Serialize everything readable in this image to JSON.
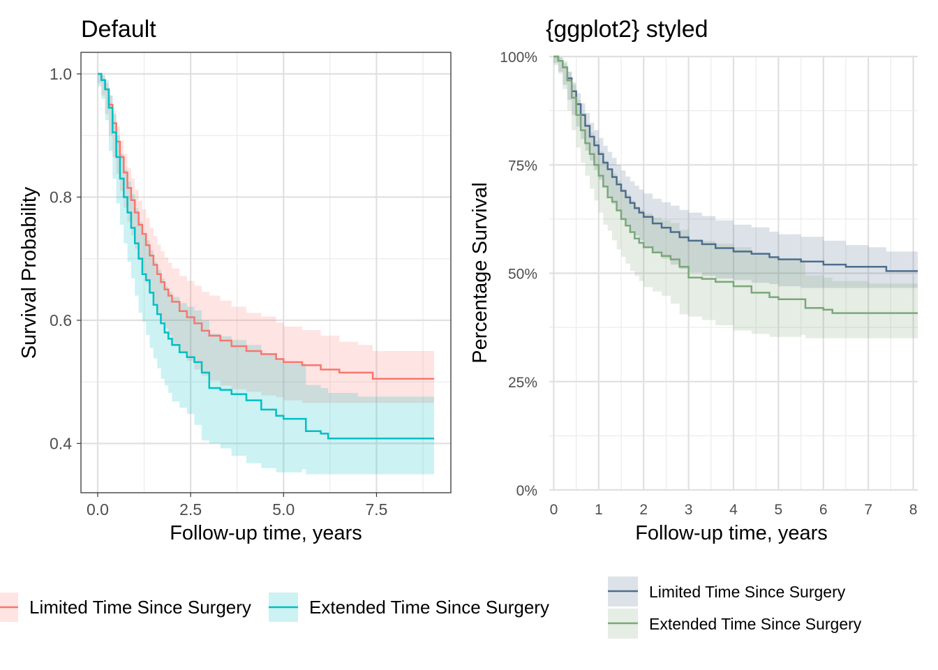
{
  "chart_data": [
    {
      "type": "line",
      "title": "Default",
      "xlabel": "Follow-up time, years",
      "ylabel": "Survival Probability",
      "xlim": [
        -0.45,
        9.5
      ],
      "ylim": [
        0.32,
        1.035
      ],
      "xticks": [
        0,
        2.5,
        5,
        7.5
      ],
      "xtick_labels": [
        "0.0",
        "2.5",
        "5.0",
        "7.5"
      ],
      "yticks": [
        0.4,
        0.6,
        0.8,
        1.0
      ],
      "ytick_labels": [
        "0.4",
        "0.6",
        "0.8",
        "1.0"
      ],
      "grid": true,
      "legend_position": "bottom",
      "series": [
        {
          "name": "Limited Time Since Surgery",
          "color": "#F8766D",
          "x": [
            0,
            0.1,
            0.2,
            0.3,
            0.4,
            0.5,
            0.6,
            0.7,
            0.8,
            0.9,
            1.0,
            1.1,
            1.2,
            1.3,
            1.4,
            1.5,
            1.6,
            1.7,
            1.8,
            1.9,
            2.0,
            2.2,
            2.4,
            2.6,
            2.8,
            3.0,
            3.3,
            3.6,
            4.0,
            4.4,
            4.8,
            5.0,
            5.5,
            6.0,
            6.5,
            7.0,
            7.4,
            9.05
          ],
          "y": [
            1.0,
            0.99,
            0.975,
            0.95,
            0.92,
            0.89,
            0.865,
            0.84,
            0.815,
            0.795,
            0.775,
            0.755,
            0.74,
            0.722,
            0.705,
            0.69,
            0.675,
            0.662,
            0.65,
            0.64,
            0.63,
            0.615,
            0.605,
            0.595,
            0.583,
            0.575,
            0.567,
            0.558,
            0.55,
            0.545,
            0.537,
            0.532,
            0.527,
            0.52,
            0.515,
            0.515,
            0.505,
            0.505
          ],
          "ci_lower": [
            1.0,
            0.985,
            0.965,
            0.935,
            0.9,
            0.865,
            0.838,
            0.81,
            0.783,
            0.76,
            0.738,
            0.716,
            0.698,
            0.678,
            0.66,
            0.643,
            0.627,
            0.612,
            0.598,
            0.587,
            0.576,
            0.558,
            0.546,
            0.534,
            0.52,
            0.51,
            0.502,
            0.494,
            0.488,
            0.484,
            0.478,
            0.475,
            0.47,
            0.466,
            0.466,
            0.466,
            0.466,
            0.466
          ],
          "ci_upper": [
            1.0,
            0.998,
            0.985,
            0.965,
            0.94,
            0.915,
            0.892,
            0.87,
            0.847,
            0.83,
            0.812,
            0.794,
            0.78,
            0.766,
            0.75,
            0.737,
            0.723,
            0.712,
            0.702,
            0.693,
            0.684,
            0.672,
            0.664,
            0.656,
            0.646,
            0.64,
            0.632,
            0.622,
            0.612,
            0.606,
            0.596,
            0.59,
            0.584,
            0.575,
            0.565,
            0.56,
            0.55,
            0.55
          ]
        },
        {
          "name": "Extended Time Since Surgery",
          "color": "#00BFC4",
          "x": [
            0,
            0.1,
            0.2,
            0.3,
            0.4,
            0.5,
            0.6,
            0.7,
            0.8,
            0.9,
            1.0,
            1.1,
            1.2,
            1.3,
            1.4,
            1.5,
            1.6,
            1.7,
            1.8,
            1.9,
            2.0,
            2.2,
            2.4,
            2.6,
            2.8,
            3.0,
            3.3,
            3.6,
            4.0,
            4.4,
            4.8,
            5.0,
            5.5,
            5.6,
            6.0,
            6.2,
            7.0,
            9.05
          ],
          "y": [
            1.0,
            0.99,
            0.975,
            0.945,
            0.905,
            0.865,
            0.83,
            0.8,
            0.775,
            0.75,
            0.725,
            0.7,
            0.675,
            0.665,
            0.645,
            0.625,
            0.61,
            0.595,
            0.58,
            0.57,
            0.56,
            0.548,
            0.54,
            0.532,
            0.515,
            0.49,
            0.487,
            0.48,
            0.47,
            0.455,
            0.445,
            0.44,
            0.44,
            0.42,
            0.416,
            0.408,
            0.408,
            0.408
          ],
          "ci_lower": [
            1.0,
            0.98,
            0.96,
            0.925,
            0.875,
            0.83,
            0.79,
            0.755,
            0.725,
            0.695,
            0.668,
            0.64,
            0.612,
            0.598,
            0.576,
            0.555,
            0.538,
            0.522,
            0.505,
            0.494,
            0.482,
            0.468,
            0.458,
            0.448,
            0.43,
            0.405,
            0.4,
            0.392,
            0.38,
            0.368,
            0.36,
            0.353,
            0.353,
            0.358,
            0.35,
            0.35,
            0.35,
            0.35
          ],
          "ci_upper": [
            1.0,
            0.998,
            0.99,
            0.965,
            0.935,
            0.9,
            0.87,
            0.845,
            0.825,
            0.805,
            0.782,
            0.76,
            0.738,
            0.73,
            0.714,
            0.695,
            0.682,
            0.668,
            0.655,
            0.646,
            0.638,
            0.628,
            0.622,
            0.616,
            0.6,
            0.578,
            0.574,
            0.568,
            0.56,
            0.545,
            0.535,
            0.53,
            0.53,
            0.495,
            0.49,
            0.482,
            0.476,
            0.476
          ]
        }
      ]
    },
    {
      "type": "line",
      "title": "{ggplot2} styled",
      "xlabel": "Follow-up time, years",
      "ylabel": "Percentage Survival",
      "xlim": [
        -0.1,
        8.1
      ],
      "ylim": [
        0,
        1.0
      ],
      "xticks": [
        0,
        1,
        2,
        3,
        4,
        5,
        6,
        7,
        8
      ],
      "xtick_labels": [
        "0",
        "1",
        "2",
        "3",
        "4",
        "5",
        "6",
        "7",
        "8"
      ],
      "yticks": [
        0,
        0.25,
        0.5,
        0.75,
        1.0
      ],
      "ytick_labels": [
        "0%",
        "25%",
        "50%",
        "75%",
        "100%"
      ],
      "grid": true,
      "legend_position": "bottom-right",
      "series": [
        {
          "name": "Limited Time Since Surgery",
          "color": "#4E6D8C",
          "x": [
            0,
            0.1,
            0.2,
            0.3,
            0.4,
            0.5,
            0.6,
            0.7,
            0.8,
            0.9,
            1.0,
            1.1,
            1.2,
            1.3,
            1.4,
            1.5,
            1.6,
            1.7,
            1.8,
            1.9,
            2.0,
            2.2,
            2.4,
            2.6,
            2.8,
            3.0,
            3.3,
            3.6,
            4.0,
            4.4,
            4.8,
            5.0,
            5.5,
            6.0,
            6.5,
            7.0,
            7.4,
            8.1
          ],
          "y": [
            1.0,
            0.99,
            0.975,
            0.95,
            0.92,
            0.89,
            0.865,
            0.84,
            0.815,
            0.795,
            0.775,
            0.755,
            0.74,
            0.722,
            0.705,
            0.69,
            0.675,
            0.662,
            0.65,
            0.64,
            0.63,
            0.615,
            0.605,
            0.595,
            0.583,
            0.575,
            0.567,
            0.558,
            0.55,
            0.545,
            0.537,
            0.532,
            0.527,
            0.52,
            0.515,
            0.515,
            0.505,
            0.505
          ],
          "ci_lower": [
            1.0,
            0.985,
            0.965,
            0.935,
            0.9,
            0.865,
            0.838,
            0.81,
            0.783,
            0.76,
            0.738,
            0.716,
            0.698,
            0.678,
            0.66,
            0.643,
            0.627,
            0.612,
            0.598,
            0.587,
            0.576,
            0.558,
            0.546,
            0.534,
            0.52,
            0.51,
            0.502,
            0.494,
            0.488,
            0.484,
            0.478,
            0.475,
            0.47,
            0.466,
            0.466,
            0.466,
            0.466,
            0.466
          ],
          "ci_upper": [
            1.0,
            0.998,
            0.985,
            0.965,
            0.94,
            0.915,
            0.892,
            0.87,
            0.847,
            0.83,
            0.812,
            0.794,
            0.78,
            0.766,
            0.75,
            0.737,
            0.723,
            0.712,
            0.702,
            0.693,
            0.684,
            0.672,
            0.664,
            0.656,
            0.646,
            0.64,
            0.632,
            0.622,
            0.612,
            0.606,
            0.596,
            0.59,
            0.584,
            0.575,
            0.565,
            0.56,
            0.55,
            0.55
          ]
        },
        {
          "name": "Extended Time Since Surgery",
          "color": "#7BA77A",
          "x": [
            0,
            0.1,
            0.2,
            0.3,
            0.4,
            0.5,
            0.6,
            0.7,
            0.8,
            0.9,
            1.0,
            1.1,
            1.2,
            1.3,
            1.4,
            1.5,
            1.6,
            1.7,
            1.8,
            1.9,
            2.0,
            2.2,
            2.4,
            2.6,
            2.8,
            3.0,
            3.3,
            3.6,
            4.0,
            4.4,
            4.8,
            5.0,
            5.5,
            5.6,
            6.0,
            6.2,
            7.0,
            8.1
          ],
          "y": [
            1.0,
            0.99,
            0.975,
            0.945,
            0.905,
            0.865,
            0.83,
            0.8,
            0.775,
            0.75,
            0.725,
            0.7,
            0.675,
            0.665,
            0.645,
            0.625,
            0.61,
            0.595,
            0.58,
            0.57,
            0.56,
            0.548,
            0.54,
            0.532,
            0.515,
            0.49,
            0.487,
            0.48,
            0.47,
            0.455,
            0.445,
            0.44,
            0.44,
            0.42,
            0.416,
            0.408,
            0.408,
            0.408
          ],
          "ci_lower": [
            1.0,
            0.98,
            0.96,
            0.925,
            0.875,
            0.83,
            0.79,
            0.755,
            0.725,
            0.695,
            0.668,
            0.64,
            0.612,
            0.598,
            0.576,
            0.555,
            0.538,
            0.522,
            0.505,
            0.494,
            0.482,
            0.468,
            0.458,
            0.448,
            0.43,
            0.405,
            0.4,
            0.392,
            0.38,
            0.368,
            0.36,
            0.353,
            0.353,
            0.358,
            0.35,
            0.35,
            0.35,
            0.35
          ],
          "ci_upper": [
            1.0,
            0.998,
            0.99,
            0.965,
            0.935,
            0.9,
            0.87,
            0.845,
            0.825,
            0.805,
            0.782,
            0.76,
            0.738,
            0.73,
            0.714,
            0.695,
            0.682,
            0.668,
            0.655,
            0.646,
            0.638,
            0.628,
            0.622,
            0.616,
            0.6,
            0.578,
            0.574,
            0.568,
            0.56,
            0.545,
            0.535,
            0.53,
            0.53,
            0.495,
            0.49,
            0.482,
            0.476,
            0.476
          ]
        }
      ]
    }
  ]
}
